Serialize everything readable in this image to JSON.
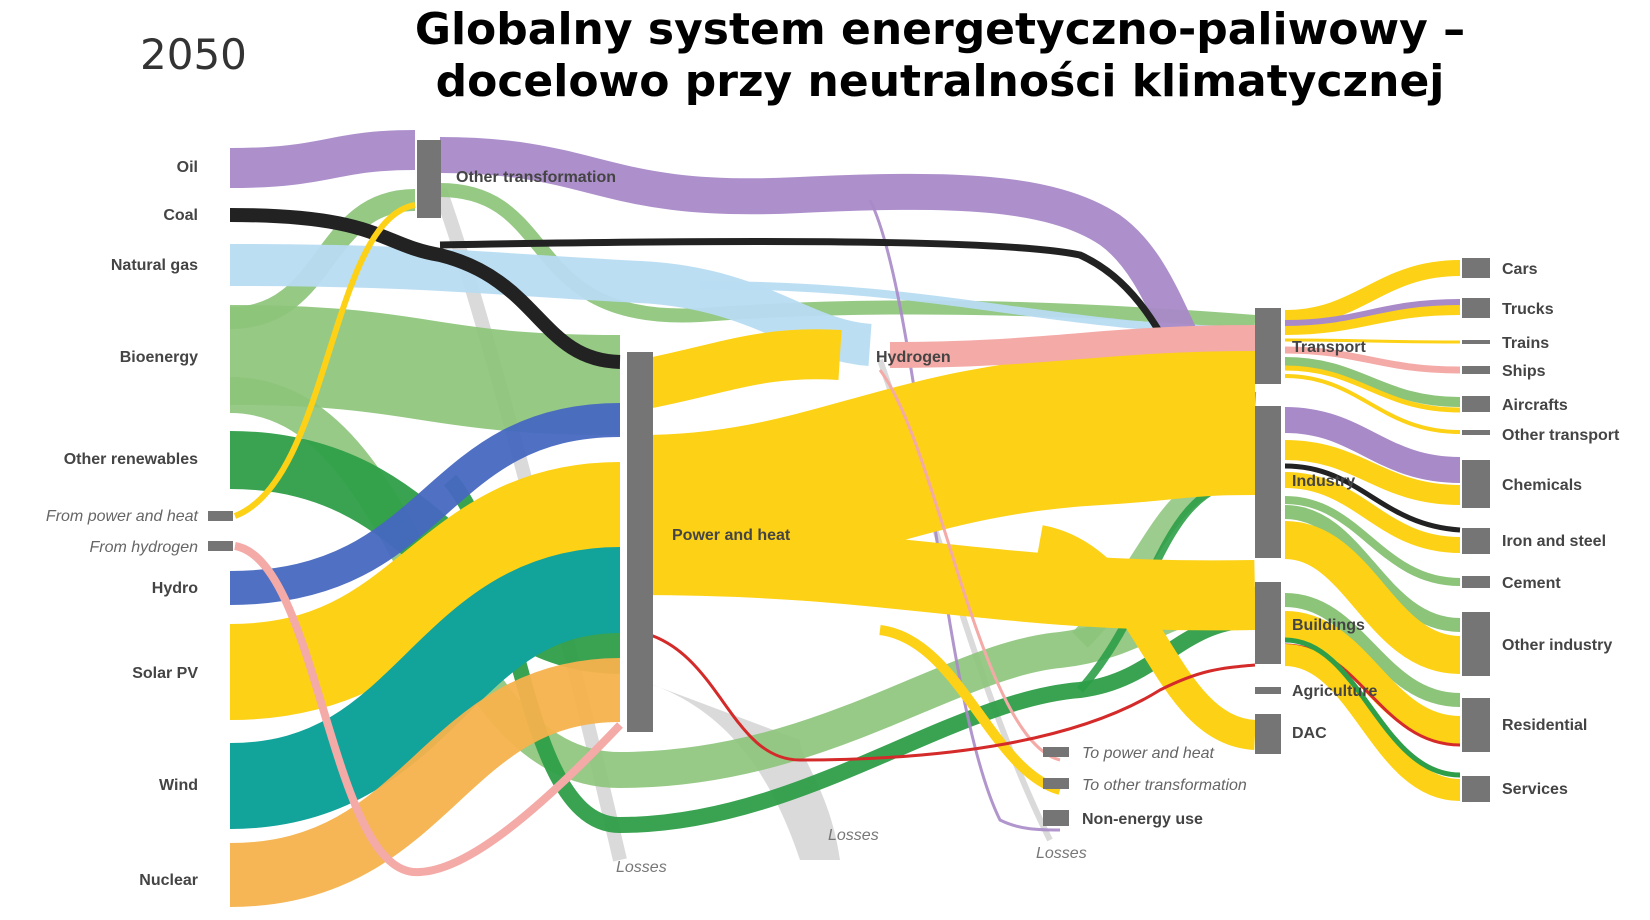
{
  "year": "2050",
  "title": {
    "line1": "Globalny system energetyczno-paliwowy –",
    "line2": "docelowo przy neutralności klimatycznej"
  },
  "colors": {
    "oil": "#a98ac8",
    "coal": "#222222",
    "gas": "#b8dcf2",
    "bio": "#8cc47a",
    "other_renew": "#2e9e48",
    "hydro": "#4668c0",
    "solar": "#fcd116",
    "wind": "#12a39a",
    "nuclear": "#f6b24c",
    "hydrogen": "#f4aaa6",
    "losses": "#d6d6d6",
    "power_red": "#d42a2a",
    "node": "#757575"
  },
  "sources": {
    "oil": "Oil",
    "coal": "Coal",
    "natural_gas": "Natural gas",
    "bioenergy": "Bioenergy",
    "other_renewables": "Other renewables",
    "from_power_heat": "From power and heat",
    "from_hydrogen": "From hydrogen",
    "hydro": "Hydro",
    "solar_pv": "Solar PV",
    "wind": "Wind",
    "nuclear": "Nuclear"
  },
  "middle": {
    "other_transformation": "Other transformation",
    "power_and_heat": "Power and heat",
    "hydrogen": "Hydrogen",
    "losses_1": "Losses",
    "losses_2": "Losses",
    "losses_3": "Losses"
  },
  "sectors": {
    "transport": "Transport",
    "industry": "Industry",
    "buildings": "Buildings",
    "agriculture": "Agriculture",
    "dac": "DAC",
    "to_power_heat": "To power and heat",
    "to_other_transformation": "To other transformation",
    "non_energy_use": "Non-energy use"
  },
  "end_uses": {
    "cars": "Cars",
    "trucks": "Trucks",
    "trains": "Trains",
    "ships": "Ships",
    "aircrafts": "Aircrafts",
    "other_transport": "Other transport",
    "chemicals": "Chemicals",
    "iron_steel": "Iron and steel",
    "cement": "Cement",
    "other_industry": "Other industry",
    "residential": "Residential",
    "services": "Services"
  }
}
